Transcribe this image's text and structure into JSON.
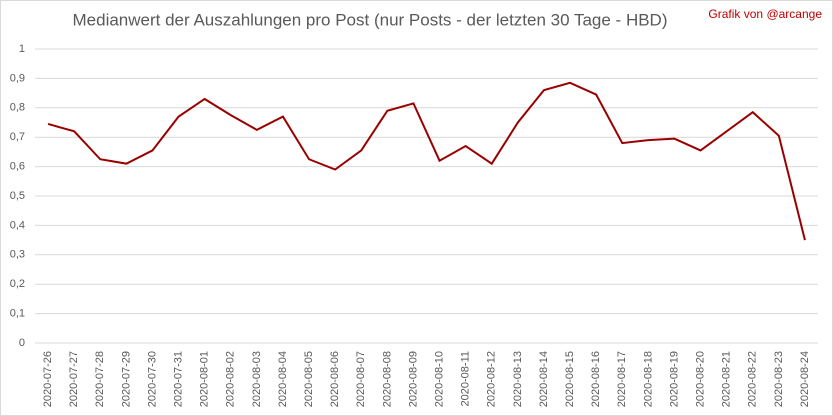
{
  "chart_data": {
    "type": "line",
    "title": "Medianwert der Auszahlungen pro Post (nur Posts - der letzten 30 Tage - HBD)",
    "annotation": "Grafik von @arcange",
    "categories": [
      "2020-07-26",
      "2020-07-27",
      "2020-07-28",
      "2020-07-29",
      "2020-07-30",
      "2020-07-31",
      "2020-08-01",
      "2020-08-02",
      "2020-08-03",
      "2020-08-04",
      "2020-08-05",
      "2020-08-06",
      "2020-08-07",
      "2020-08-08",
      "2020-08-09",
      "2020-08-10",
      "2020-08-11",
      "2020-08-12",
      "2020-08-13",
      "2020-08-14",
      "2020-08-15",
      "2020-08-16",
      "2020-08-17",
      "2020-08-18",
      "2020-08-19",
      "2020-08-20",
      "2020-08-21",
      "2020-08-22",
      "2020-08-23",
      "2020-08-24"
    ],
    "values": [
      0.745,
      0.72,
      0.625,
      0.61,
      0.655,
      0.77,
      0.83,
      0.775,
      0.725,
      0.77,
      0.625,
      0.59,
      0.655,
      0.79,
      0.815,
      0.62,
      0.67,
      0.61,
      0.75,
      0.86,
      0.885,
      0.845,
      0.68,
      0.69,
      0.695,
      0.655,
      0.72,
      0.785,
      0.705,
      0.35
    ],
    "color": "#990000",
    "ylim": [
      0,
      1
    ],
    "yticks": [
      0,
      {
        "value": 0.1,
        "label": "0,1"
      },
      {
        "value": 0.2,
        "label": "0,2"
      },
      {
        "value": 0.3,
        "label": "0,3"
      },
      {
        "value": 0.4,
        "label": "0,4"
      },
      {
        "value": 0.5,
        "label": "0,5"
      },
      {
        "value": 0.6,
        "label": "0,6"
      },
      {
        "value": 0.7,
        "label": "0,7"
      },
      {
        "value": 0.8,
        "label": "0,8"
      },
      {
        "value": 0.9,
        "label": "0,9"
      },
      1
    ],
    "grid": true
  }
}
